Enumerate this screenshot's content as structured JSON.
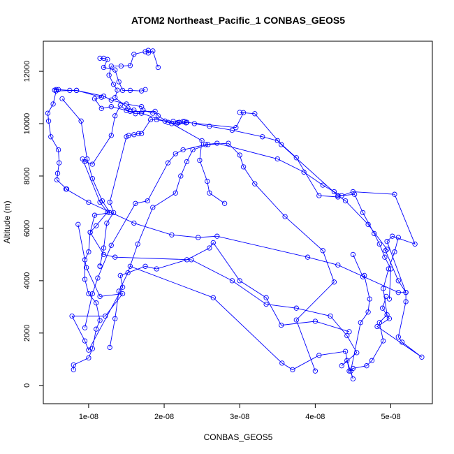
{
  "chart_data": {
    "type": "line",
    "title": "ATOM2 Northeast_Pacific_1 CONBAS_GEOS5",
    "xlabel": "CONBAS_GEOS5",
    "ylabel": "Altitude (m)",
    "xlim": [
      4e-09,
      5.55e-08
    ],
    "ylim": [
      -700,
      13150
    ],
    "x_ticks": [
      {
        "value": 1e-08,
        "label": "1e-08"
      },
      {
        "value": 2e-08,
        "label": "2e-08"
      },
      {
        "value": 3e-08,
        "label": "3e-08"
      },
      {
        "value": 4e-08,
        "label": "4e-08"
      },
      {
        "value": 5e-08,
        "label": "5e-08"
      }
    ],
    "y_ticks": [
      {
        "value": 0,
        "label": "0"
      },
      {
        "value": 2000,
        "label": "2000"
      },
      {
        "value": 4000,
        "label": "4000"
      },
      {
        "value": 6000,
        "label": "6000"
      },
      {
        "value": 8000,
        "label": "8000"
      },
      {
        "value": 10000,
        "label": "10000"
      },
      {
        "value": 12000,
        "label": "12000"
      }
    ],
    "grid": false,
    "legend": "none",
    "color": "#0000ff",
    "marker": "open-circle",
    "series": [
      {
        "points": [
          [
            7.1e-09,
            7500
          ],
          [
            5.8e-09,
            7850
          ],
          [
            5.9e-09,
            8100
          ],
          [
            6.1e-09,
            8500
          ],
          [
            6e-09,
            9000
          ],
          [
            5e-09,
            9500
          ],
          [
            4.7e-09,
            10100
          ],
          [
            4.6e-09,
            10400
          ],
          [
            5.3e-09,
            10750
          ],
          [
            5.7e-09,
            11250
          ],
          [
            8.4e-09,
            11270
          ],
          [
            1.17e-08,
            11010
          ],
          [
            1.08e-08,
            10950
          ],
          [
            1.17e-08,
            10580
          ],
          [
            1.3e-08,
            10650
          ],
          [
            1.55e-08,
            10470
          ],
          [
            1.88e-08,
            10470
          ],
          [
            1.92e-08,
            10300
          ],
          [
            2.05e-08,
            10050
          ],
          [
            2.17e-08,
            10000
          ],
          [
            2.3e-08,
            10050
          ],
          [
            2.95e-08,
            9850
          ],
          [
            3.05e-08,
            10420
          ],
          [
            3e-08,
            10430
          ],
          [
            3.2e-08,
            10380
          ],
          [
            3.55e-08,
            9200
          ],
          [
            4.3e-08,
            7250
          ],
          [
            4.4e-08,
            7050
          ],
          [
            4.7e-08,
            6150
          ],
          [
            4.95e-08,
            5200
          ],
          [
            4.93e-08,
            5150
          ],
          [
            5.1e-08,
            4000
          ],
          [
            5.2e-08,
            3550
          ],
          [
            5.2e-08,
            3200
          ],
          [
            5.1e-08,
            1850
          ],
          [
            5.15e-08,
            1650
          ],
          [
            5.41e-08,
            1080
          ],
          [
            4.82e-08,
            2250
          ],
          [
            4.98e-08,
            2550
          ],
          [
            4.89e-08,
            2950
          ],
          [
            4.94e-08,
            3400
          ]
        ]
      },
      {
        "points": [
          [
            1.15e-08,
            4550
          ],
          [
            1.15e-08,
            4560
          ],
          [
            1.2e-08,
            5250
          ],
          [
            1.24e-08,
            6200
          ],
          [
            1.33e-08,
            6600
          ],
          [
            1.28e-08,
            7000
          ],
          [
            1.5e-08,
            9500
          ],
          [
            1.53e-08,
            9550
          ],
          [
            1.6e-08,
            9580
          ],
          [
            1.66e-08,
            9620
          ],
          [
            1.7e-08,
            9620
          ],
          [
            1.82e-08,
            10150
          ],
          [
            1.9e-08,
            10150
          ],
          [
            2.01e-08,
            10100
          ],
          [
            2.12e-08,
            10090
          ],
          [
            2.18e-08,
            10040
          ],
          [
            2.2e-08,
            10050
          ],
          [
            2.25e-08,
            10080
          ],
          [
            2.27e-08,
            10080
          ],
          [
            2.29e-08,
            10030
          ]
        ]
      },
      {
        "points": [
          [
            8e-09,
            600
          ],
          [
            8e-09,
            780
          ],
          [
            1e-08,
            1050
          ],
          [
            1.05e-08,
            1400
          ],
          [
            1.1e-08,
            2150
          ],
          [
            1.15e-08,
            2480
          ],
          [
            1.1e-08,
            3150
          ],
          [
            1e-08,
            3500
          ],
          [
            9.5e-09,
            4050
          ],
          [
            9.5e-09,
            4800
          ],
          [
            1e-08,
            5100
          ],
          [
            1.02e-08,
            5850
          ],
          [
            1.1e-08,
            6100
          ],
          [
            1.25e-08,
            6620
          ],
          [
            1.15e-08,
            7000
          ],
          [
            9.2e-09,
            8650
          ],
          [
            9.5e-09,
            8550
          ],
          [
            1.05e-08,
            8450
          ],
          [
            1.3e-08,
            9550
          ],
          [
            1.35e-08,
            10300
          ],
          [
            1.42e-08,
            10700
          ],
          [
            1.5e-08,
            10500
          ],
          [
            1.62e-08,
            10380
          ],
          [
            1.7e-08,
            10400
          ]
        ]
      },
      {
        "points": [
          [
            1.92e-08,
            12150
          ],
          [
            1.85e-08,
            12780
          ],
          [
            1.79e-08,
            12700
          ],
          [
            1.79e-08,
            12800
          ],
          [
            1.75e-08,
            12750
          ],
          [
            1.6e-08,
            12650
          ],
          [
            1.55e-08,
            12220
          ],
          [
            1.43e-08,
            12200
          ],
          [
            1.3e-08,
            12200
          ],
          [
            1.27e-08,
            11850
          ],
          [
            1.33e-08,
            11500
          ],
          [
            1.38e-08,
            11280
          ],
          [
            1.35e-08,
            11000
          ],
          [
            1.52e-08,
            10600
          ],
          [
            1.6e-08,
            10520
          ],
          [
            1.7e-08,
            10400
          ],
          [
            2.1e-08,
            10000
          ],
          [
            2.5e-08,
            9350
          ],
          [
            2.47e-08,
            8600
          ],
          [
            2.57e-08,
            7800
          ],
          [
            2.6e-08,
            7350
          ],
          [
            2.8e-08,
            6950
          ]
        ]
      },
      {
        "points": [
          [
            1.28e-08,
            1450
          ],
          [
            1.35e-08,
            2550
          ],
          [
            1.4e-08,
            3600
          ],
          [
            1.52e-08,
            4300
          ],
          [
            1.65e-08,
            5400
          ],
          [
            1.85e-08,
            6800
          ],
          [
            2.15e-08,
            7350
          ],
          [
            2.22e-08,
            8000
          ],
          [
            2.3e-08,
            8550
          ],
          [
            2.38e-08,
            9000
          ],
          [
            2.58e-08,
            9200
          ],
          [
            2.85e-08,
            9250
          ],
          [
            3e-08,
            8800
          ],
          [
            3.05e-08,
            8350
          ],
          [
            3.2e-08,
            7700
          ],
          [
            3.6e-08,
            6450
          ],
          [
            4.1e-08,
            5150
          ],
          [
            4.25e-08,
            3950
          ],
          [
            3.75e-08,
            2500
          ],
          [
            4e-08,
            550
          ]
        ]
      },
      {
        "points": [
          [
            8.6e-09,
            6150
          ],
          [
            9.7e-09,
            4500
          ],
          [
            1.15e-08,
            3400
          ],
          [
            1.45e-08,
            3500
          ],
          [
            1.22e-08,
            2650
          ],
          [
            7.8e-09,
            2650
          ],
          [
            9.5e-09,
            1700
          ],
          [
            1e-08,
            1350
          ],
          [
            1.45e-08,
            3750
          ],
          [
            1.42e-08,
            4200
          ],
          [
            1.75e-08,
            4550
          ],
          [
            1.9e-08,
            4450
          ],
          [
            2.3e-08,
            4800
          ],
          [
            2.6e-08,
            5250
          ],
          [
            2.65e-08,
            5450
          ],
          [
            3e-08,
            4000
          ],
          [
            3.35e-08,
            3350
          ],
          [
            3.55e-08,
            2300
          ],
          [
            4e-08,
            2450
          ],
          [
            4.45e-08,
            2050
          ]
        ]
      },
      {
        "points": [
          [
            1.55e-08,
            4550
          ],
          [
            2.65e-08,
            3350
          ],
          [
            3.56e-08,
            850
          ],
          [
            3.7e-08,
            600
          ],
          [
            4.05e-08,
            1150
          ],
          [
            4.4e-08,
            1300
          ],
          [
            4.45e-08,
            550
          ],
          [
            4.5e-08,
            650
          ],
          [
            4.68e-08,
            750
          ],
          [
            4.75e-08,
            950
          ],
          [
            4.9e-08,
            1700
          ],
          [
            4.85e-08,
            2400
          ],
          [
            4.95e-08,
            2700
          ],
          [
            4.9e-08,
            3700
          ],
          [
            4.97e-08,
            4450
          ],
          [
            5.05e-08,
            5100
          ],
          [
            5.1e-08,
            5650
          ]
        ]
      },
      {
        "points": [
          [
            9.5e-09,
            2200
          ],
          [
            1.05e-08,
            3500
          ],
          [
            1.12e-08,
            4100
          ],
          [
            1.3e-08,
            5350
          ],
          [
            1.62e-08,
            6950
          ],
          [
            1.78e-08,
            7050
          ],
          [
            2.05e-08,
            8500
          ],
          [
            2.15e-08,
            8850
          ],
          [
            2.25e-08,
            9000
          ],
          [
            2.55e-08,
            9200
          ],
          [
            2.7e-08,
            9250
          ],
          [
            3.5e-08,
            8650
          ],
          [
            3.85e-08,
            8150
          ],
          [
            4.1e-08,
            7650
          ],
          [
            4.25e-08,
            7400
          ],
          [
            4.35e-08,
            7250
          ],
          [
            4.52e-08,
            7300
          ],
          [
            4.63e-08,
            6600
          ],
          [
            4.78e-08,
            5800
          ],
          [
            4.85e-08,
            5400
          ],
          [
            4.92e-08,
            4900
          ],
          [
            5e-08,
            4450
          ],
          [
            4.98e-08,
            3300
          ]
        ]
      },
      {
        "points": [
          [
            6.5e-09,
            10950
          ],
          [
            9e-09,
            10100
          ],
          [
            9.8e-09,
            8650
          ],
          [
            1.05e-08,
            7900
          ],
          [
            1.18e-08,
            7050
          ],
          [
            1.28e-08,
            6600
          ],
          [
            1.08e-08,
            6500
          ],
          [
            1.02e-08,
            5850
          ],
          [
            1.2e-08,
            5000
          ],
          [
            1.35e-08,
            4900
          ],
          [
            2.36e-08,
            4800
          ],
          [
            2.9e-08,
            4000
          ],
          [
            3.35e-08,
            3100
          ],
          [
            3.75e-08,
            2950
          ],
          [
            4.2e-08,
            2650
          ],
          [
            4.42e-08,
            1900
          ],
          [
            4.55e-08,
            1250
          ],
          [
            4.35e-08,
            750
          ],
          [
            4.42e-08,
            950
          ],
          [
            4.5e-08,
            250
          ],
          [
            4.47e-08,
            550
          ],
          [
            4.6e-08,
            2400
          ],
          [
            4.7e-08,
            2800
          ],
          [
            4.72e-08,
            3300
          ],
          [
            4.65e-08,
            4200
          ],
          [
            4.63e-08,
            4150
          ],
          [
            4.5e-08,
            5000
          ]
        ]
      },
      {
        "points": [
          [
            7e-09,
            7500
          ],
          [
            1e-08,
            7000
          ],
          [
            1.6e-08,
            6200
          ],
          [
            2.1e-08,
            5750
          ],
          [
            2.45e-08,
            5650
          ],
          [
            2.7e-08,
            5700
          ],
          [
            3.9e-08,
            4900
          ],
          [
            4.3e-08,
            4600
          ],
          [
            5.1e-08,
            3550
          ],
          [
            5.2e-08,
            3550
          ],
          [
            4.95e-08,
            5500
          ],
          [
            5.02e-08,
            5700
          ],
          [
            5.32e-08,
            5400
          ],
          [
            5.05e-08,
            7300
          ],
          [
            4.5e-08,
            7400
          ],
          [
            4.3e-08,
            7200
          ],
          [
            4.05e-08,
            7250
          ],
          [
            3.75e-08,
            8700
          ],
          [
            3.5e-08,
            9350
          ],
          [
            3.3e-08,
            9500
          ],
          [
            2.9e-08,
            9750
          ],
          [
            2.6e-08,
            9900
          ],
          [
            2.4e-08,
            10000
          ]
        ]
      },
      {
        "points": [
          [
            5.5e-09,
            11280
          ],
          [
            5.7e-09,
            11300
          ],
          [
            6e-09,
            11300
          ],
          [
            7.5e-09,
            11270
          ],
          [
            8.4e-09,
            11270
          ],
          [
            1.2e-08,
            11050
          ],
          [
            1.3e-08,
            10900
          ],
          [
            1.5e-08,
            10750
          ],
          [
            1.7e-08,
            10650
          ],
          [
            1.72e-08,
            10520
          ],
          [
            1.85e-08,
            10400
          ]
        ]
      },
      {
        "points": [
          [
            1.15e-08,
            12500
          ],
          [
            1.2e-08,
            12500
          ],
          [
            1.25e-08,
            12450
          ],
          [
            1.2e-08,
            12150
          ],
          [
            1.35e-08,
            12050
          ],
          [
            1.4e-08,
            11600
          ],
          [
            1.45e-08,
            11270
          ],
          [
            1.55e-08,
            11270
          ],
          [
            1.7e-08,
            11250
          ],
          [
            1.75e-08,
            11300
          ]
        ]
      }
    ]
  }
}
